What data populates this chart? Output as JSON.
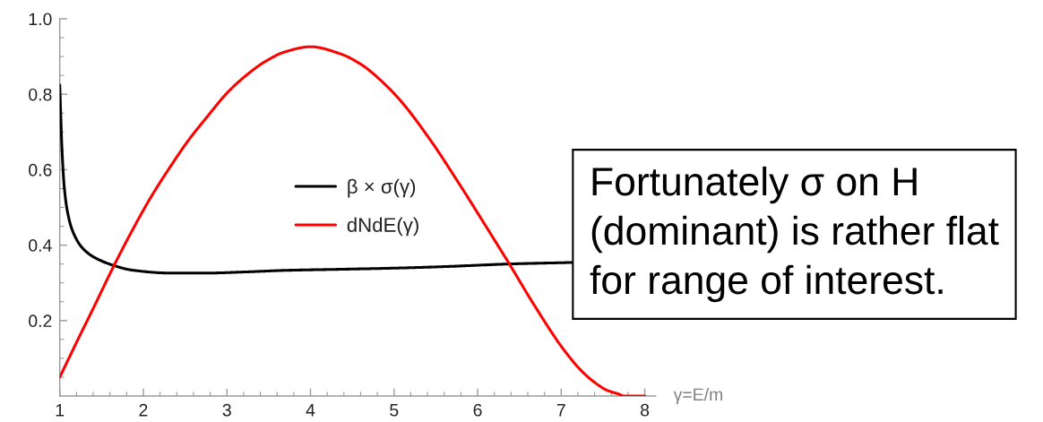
{
  "chart_data": {
    "type": "line",
    "xlabel": "γ=E/m",
    "legend": "center",
    "xlim": [
      1,
      8.13
    ],
    "ylim": [
      0,
      1.0
    ],
    "xticks": [
      1,
      {
        "value": 1.2,
        "label": null
      },
      {
        "value": 1.4,
        "label": null
      },
      {
        "value": 1.6,
        "label": null
      },
      {
        "value": 1.8,
        "label": null
      },
      2,
      {
        "value": 2.2,
        "label": null
      },
      {
        "value": 2.4,
        "label": null
      },
      {
        "value": 2.6,
        "label": null
      },
      {
        "value": 2.8,
        "label": null
      },
      3,
      {
        "value": 3.2,
        "label": null
      },
      {
        "value": 3.4,
        "label": null
      },
      {
        "value": 3.6,
        "label": null
      },
      {
        "value": 3.8,
        "label": null
      },
      4,
      {
        "value": 4.2,
        "label": null
      },
      {
        "value": 4.4,
        "label": null
      },
      {
        "value": 4.6,
        "label": null
      },
      {
        "value": 4.8,
        "label": null
      },
      5,
      {
        "value": 5.2,
        "label": null
      },
      {
        "value": 5.4,
        "label": null
      },
      {
        "value": 5.6,
        "label": null
      },
      {
        "value": 5.8,
        "label": null
      },
      6,
      {
        "value": 6.2,
        "label": null
      },
      {
        "value": 6.4,
        "label": null
      },
      {
        "value": 6.6,
        "label": null
      },
      {
        "value": 6.8,
        "label": null
      },
      7,
      {
        "value": 7.2,
        "label": null
      },
      {
        "value": 7.4,
        "label": null
      },
      {
        "value": 7.6,
        "label": null
      },
      {
        "value": 7.8,
        "label": null
      },
      8
    ],
    "yticks": [
      {
        "value": 0.05,
        "label": null
      },
      {
        "value": 0.1,
        "label": null
      },
      {
        "value": 0.15,
        "label": null
      },
      0.2,
      {
        "value": 0.25,
        "label": null
      },
      {
        "value": 0.3,
        "label": null
      },
      {
        "value": 0.35,
        "label": null
      },
      0.4,
      {
        "value": 0.45,
        "label": null
      },
      {
        "value": 0.5,
        "label": null
      },
      {
        "value": 0.55,
        "label": null
      },
      0.6,
      {
        "value": 0.65,
        "label": null
      },
      {
        "value": 0.7,
        "label": null
      },
      {
        "value": 0.75,
        "label": null
      },
      0.8,
      {
        "value": 0.85,
        "label": null
      },
      {
        "value": 0.9,
        "label": null
      },
      {
        "value": 0.95,
        "label": null
      },
      {
        "value": 1.0,
        "label": "1.0"
      }
    ],
    "series": [
      {
        "name": "β × σ(γ)",
        "color": "#000000",
        "x": [
          1.0,
          1.027,
          1.055,
          1.091,
          1.151,
          1.265,
          1.402,
          1.66,
          1.858,
          2.315,
          2.772,
          3.228,
          3.685,
          4.364,
          5.0,
          5.6,
          6.378,
          7.125
        ],
        "values": [
          0.825,
          0.652,
          0.551,
          0.49,
          0.439,
          0.394,
          0.369,
          0.345,
          0.334,
          0.326,
          0.326,
          0.329,
          0.333,
          0.336,
          0.339,
          0.343,
          0.35,
          0.354
        ]
      },
      {
        "name": "dNdE(γ)",
        "color": "#ff0000",
        "x": [
          1.0,
          1.22,
          1.4,
          1.647,
          1.86,
          2.09,
          2.32,
          2.54,
          2.77,
          3.0,
          3.23,
          3.46,
          3.69,
          4.0,
          4.36,
          4.6,
          4.85,
          5.07,
          5.43,
          5.79,
          6.15,
          6.38,
          6.68,
          7.04,
          7.25,
          7.4,
          7.55,
          7.69,
          7.75,
          8.0
        ],
        "values": [
          0.05,
          0.151,
          0.232,
          0.345,
          0.436,
          0.527,
          0.607,
          0.678,
          0.742,
          0.803,
          0.85,
          0.887,
          0.912,
          0.926,
          0.907,
          0.88,
          0.835,
          0.785,
          0.68,
          0.559,
          0.432,
          0.35,
          0.24,
          0.12,
          0.065,
          0.036,
          0.015,
          0.005,
          0.0,
          0.0
        ]
      }
    ],
    "annotations": [
      "Fortunately σ on H\n(dominant) is rather flat\nfor range of interest."
    ]
  }
}
